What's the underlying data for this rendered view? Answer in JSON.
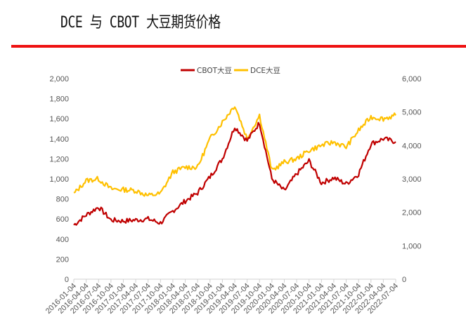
{
  "header": {
    "title": "DCE 与 CBOT 大豆期货价格",
    "rule_color": "#ee1111"
  },
  "chart_data": {
    "type": "line",
    "title": "DCE 与 CBOT 大豆期货价格",
    "xlabel": "",
    "ylabel": "",
    "ylabel_right": "",
    "legend_position": "top",
    "grid": false,
    "y_left": {
      "range": [
        0,
        2000
      ],
      "ticks": [
        "0",
        "200",
        "400",
        "600",
        "800",
        "1,000",
        "1,200",
        "1,400",
        "1,600",
        "1,800",
        "2,000"
      ]
    },
    "y_right": {
      "range": [
        0,
        6000
      ],
      "ticks": [
        "0",
        "1,000",
        "2,000",
        "3,000",
        "4,000",
        "5,000",
        "6,000"
      ]
    },
    "categories": [
      "2016-01-04",
      "2016-04-04",
      "2016-07-04",
      "2016-10-04",
      "2017-01-04",
      "2017-04-04",
      "2017-07-04",
      "2017-10-04",
      "2018-01-04",
      "2018-04-04",
      "2018-07-04",
      "2018-10-04",
      "2019-01-04",
      "2019-04-04",
      "2019-07-04",
      "2019-10-04",
      "2020-01-04",
      "2020-04-04",
      "2020-07-04",
      "2020-10-04",
      "2021-01-04",
      "2021-04-04",
      "2021-07-04",
      "2021-10-04",
      "2022-01-04",
      "2022-04-04",
      "2022-07-04"
    ],
    "series": [
      {
        "name": "CBOT大豆",
        "axis": "left",
        "color": "#c00000",
        "values": [
          540,
          640,
          720,
          590,
          580,
          590,
          600,
          560,
          680,
          780,
          860,
          1020,
          1200,
          1520,
          1380,
          1560,
          1000,
          880,
          1050,
          1180,
          960,
          1010,
          950,
          1050,
          1350,
          1400,
          1370
        ]
      },
      {
        "name": "DCE大豆",
        "axis": "right",
        "color": "#ffc000",
        "values": [
          2550,
          2950,
          3000,
          2700,
          2680,
          2650,
          2500,
          2560,
          3200,
          3350,
          3350,
          4200,
          4700,
          5200,
          4200,
          4900,
          3250,
          3500,
          3600,
          3850,
          4000,
          4100,
          3950,
          4450,
          4850,
          4800,
          4900
        ]
      }
    ]
  },
  "legend": {
    "items": [
      {
        "label": "CBOT大豆",
        "color": "#c00000"
      },
      {
        "label": "DCE大豆",
        "color": "#ffc000"
      }
    ]
  }
}
